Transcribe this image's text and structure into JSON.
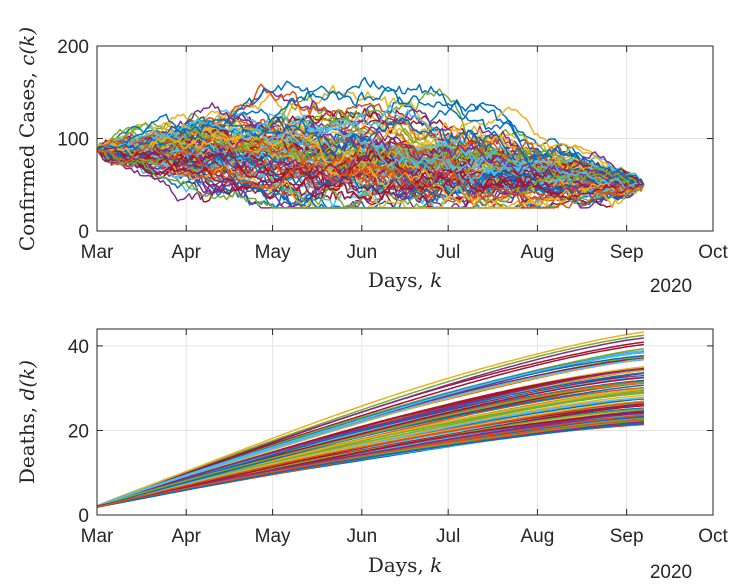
{
  "chart_data": [
    {
      "type": "line",
      "name": "confirmed-cases",
      "ylabel_text": "Confirmed Cases, ",
      "ylabel_var": "c(k)",
      "xlabel_text": "Days, ",
      "xlabel_var": "k",
      "year_label": "2020",
      "x_ticks": [
        "Mar",
        "Apr",
        "May",
        "Jun",
        "Jul",
        "Aug",
        "Sep",
        "Oct"
      ],
      "y_ticks": [
        "0",
        "100",
        "200"
      ],
      "ylim": [
        0,
        200
      ],
      "xlim": [
        "2020-03-01",
        "2020-10-01"
      ],
      "x_end": "2020-09-07",
      "grid": true,
      "num_series": 100,
      "start_value": 88,
      "end_value": 50,
      "typical_range": [
        30,
        175
      ]
    },
    {
      "type": "line",
      "name": "deaths",
      "ylabel_text": "Deaths, ",
      "ylabel_var": "d(k)",
      "xlabel_text": "Days, ",
      "xlabel_var": "k",
      "year_label": "2020",
      "x_ticks": [
        "Mar",
        "Apr",
        "May",
        "Jun",
        "Jul",
        "Aug",
        "Sep",
        "Oct"
      ],
      "y_ticks": [
        "0",
        "20",
        "40"
      ],
      "ylim": [
        0,
        44
      ],
      "xlim": [
        "2020-03-01",
        "2020-10-01"
      ],
      "x_end": "2020-09-07",
      "grid": true,
      "num_series": 100,
      "start_value": 2,
      "end_range": [
        21.5,
        43.5
      ]
    }
  ],
  "colors": [
    "#0072BD",
    "#D95319",
    "#EDB120",
    "#7E2F8E",
    "#77AC30",
    "#4DBEEE",
    "#A2142F"
  ]
}
